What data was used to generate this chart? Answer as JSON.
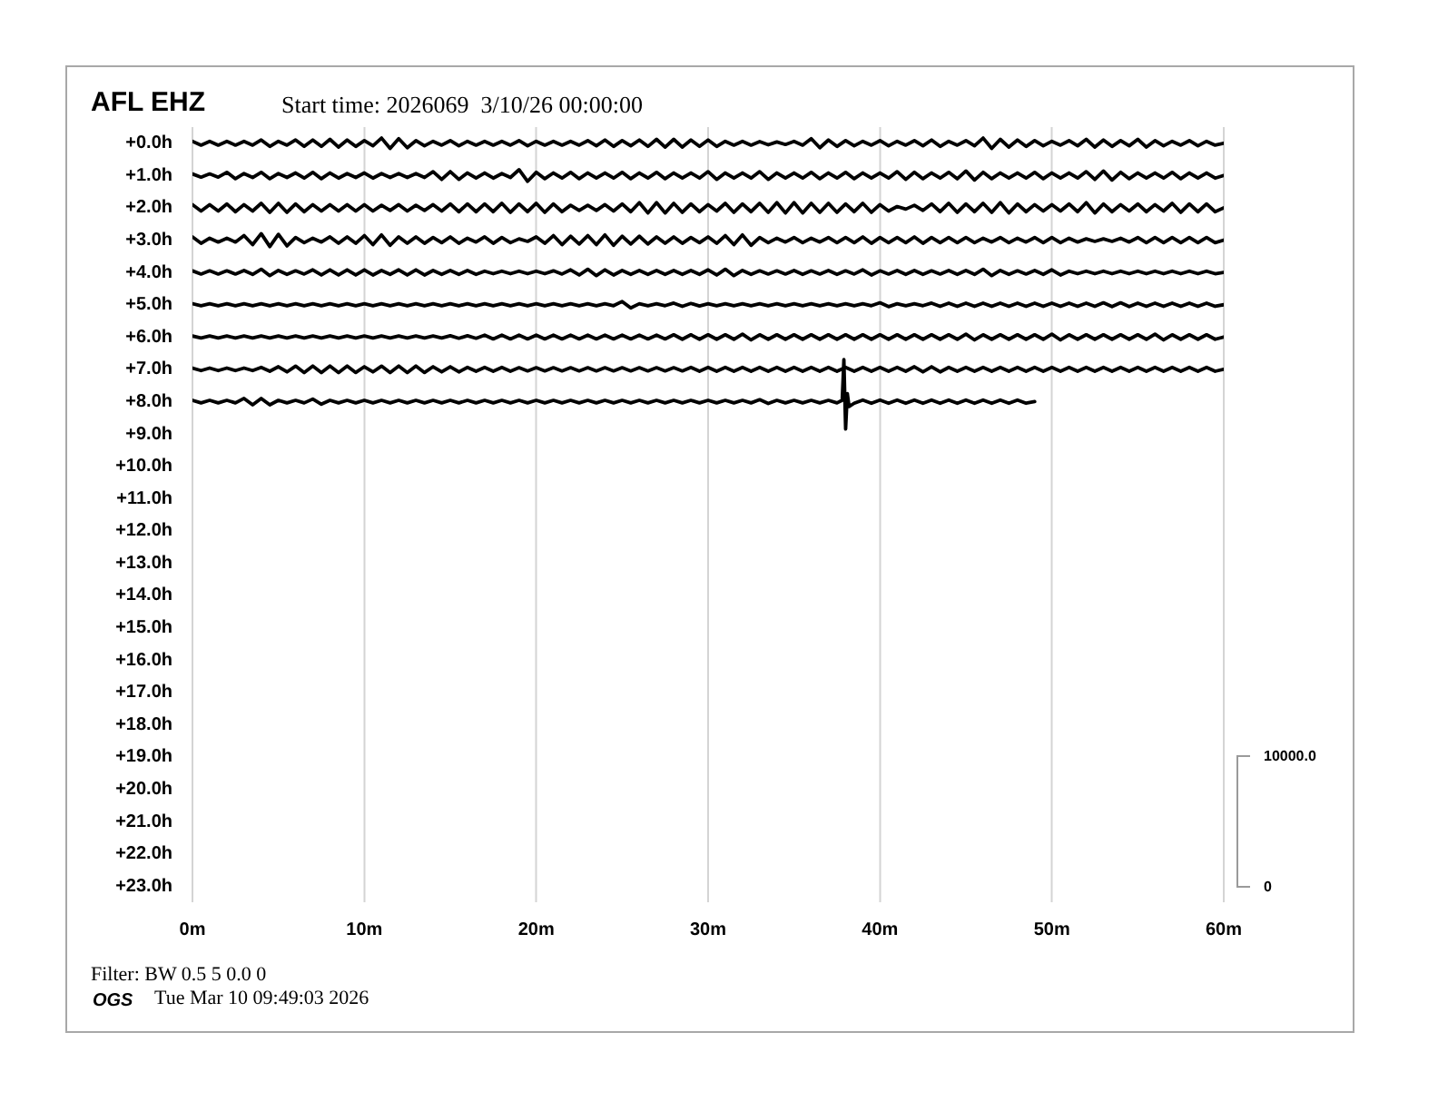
{
  "chart_data": {
    "type": "line",
    "title": "AFL EHZ",
    "subtitle": "Start time: 2026069  3/10/26 00:00:00",
    "annotations": [
      "10000.0",
      "0",
      "Filter: BW 0.5 5 0.0 0",
      "OGS",
      "Tue Mar 10 09:49:03 2026"
    ],
    "grid": "x",
    "xlim": [
      0,
      60
    ],
    "xticks": [
      {
        "value": 0,
        "label": "0m"
      },
      {
        "value": 10,
        "label": "10m"
      },
      {
        "value": 20,
        "label": "20m"
      },
      {
        "value": 30,
        "label": "30m"
      },
      {
        "value": 40,
        "label": "40m"
      },
      {
        "value": 50,
        "label": "50m"
      },
      {
        "value": 60,
        "label": "60m"
      }
    ],
    "ylim": [
      23.5,
      -0.5
    ],
    "yticks": [
      {
        "value": 0,
        "label": "+0.0h"
      },
      {
        "value": 1,
        "label": "+1.0h"
      },
      {
        "value": 2,
        "label": "+2.0h"
      },
      {
        "value": 3,
        "label": "+3.0h"
      },
      {
        "value": 4,
        "label": "+4.0h"
      },
      {
        "value": 5,
        "label": "+5.0h"
      },
      {
        "value": 6,
        "label": "+6.0h"
      },
      {
        "value": 7,
        "label": "+7.0h"
      },
      {
        "value": 8,
        "label": "+8.0h"
      },
      {
        "value": 9,
        "label": "+9.0h"
      },
      {
        "value": 10,
        "label": "+10.0h"
      },
      {
        "value": 11,
        "label": "+11.0h"
      },
      {
        "value": 12,
        "label": "+12.0h"
      },
      {
        "value": 13,
        "label": "+13.0h"
      },
      {
        "value": 14,
        "label": "+14.0h"
      },
      {
        "value": 15,
        "label": "+15.0h"
      },
      {
        "value": 16,
        "label": "+16.0h"
      },
      {
        "value": 17,
        "label": "+17.0h"
      },
      {
        "value": 18,
        "label": "+18.0h"
      },
      {
        "value": 19,
        "label": "+19.0h"
      },
      {
        "value": 20,
        "label": "+20.0h"
      },
      {
        "value": 21,
        "label": "+21.0h"
      },
      {
        "value": 22,
        "label": "+22.0h"
      },
      {
        "value": 23,
        "label": "+23.0h"
      }
    ],
    "x": [
      0,
      0.5,
      1,
      1.5,
      2,
      2.5,
      3,
      3.5,
      4,
      4.5,
      5,
      5.5,
      6,
      6.5,
      7,
      7.5,
      8,
      8.5,
      9,
      9.5,
      10,
      10.5,
      11,
      11.5,
      12,
      12.5,
      13,
      13.5,
      14,
      14.5,
      15,
      15.5,
      16,
      16.5,
      17,
      17.5,
      18,
      18.5,
      19,
      19.5,
      20,
      20.5,
      21,
      21.5,
      22,
      22.5,
      23,
      23.5,
      24,
      24.5,
      25,
      25.5,
      26,
      26.5,
      27,
      27.5,
      28,
      28.5,
      29,
      29.5,
      30,
      30.5,
      31,
      31.5,
      32,
      32.5,
      33,
      33.5,
      34,
      34.5,
      35,
      35.5,
      36,
      36.5,
      37,
      37.5,
      38,
      38.5,
      39,
      39.5,
      40,
      40.5,
      41,
      41.5,
      42,
      42.5,
      43,
      43.5,
      44,
      44.5,
      45,
      45.5,
      46,
      46.5,
      47,
      47.5,
      48,
      48.5,
      49,
      49.5,
      50,
      50.5,
      51,
      51.5,
      52,
      52.5,
      53,
      53.5,
      54,
      54.5,
      55,
      55.5,
      56,
      56.5,
      57,
      57.5,
      58,
      58.5,
      59,
      59.5,
      60
    ],
    "series": [
      {
        "color": "#000000",
        "values": [
          -0.06,
          0.06,
          -0.06,
          0.06,
          -0.06,
          0.06,
          -0.06,
          0.06,
          -0.1,
          0.1,
          -0.06,
          0.06,
          -0.1,
          0.1,
          -0.1,
          0.1,
          -0.12,
          0.12,
          -0.1,
          0.1,
          -0.08,
          0.08,
          -0.16,
          0.16,
          -0.14,
          0.14,
          -0.08,
          0.08,
          -0.06,
          0.06,
          -0.08,
          0.08,
          -0.06,
          0.06,
          -0.06,
          0.06,
          -0.06,
          0.06,
          -0.08,
          0.08,
          -0.06,
          0.06,
          -0.06,
          0.06,
          -0.06,
          0.06,
          -0.08,
          0.08,
          -0.1,
          0.1,
          -0.08,
          0.08,
          -0.1,
          0.1,
          -0.12,
          0.12,
          -0.12,
          0.12,
          -0.1,
          0.1,
          -0.1,
          0.1,
          -0.06,
          0.06,
          -0.06,
          0.06,
          -0.05,
          0.05,
          -0.04,
          0.04,
          -0.06,
          0.06,
          -0.14,
          0.14,
          -0.1,
          0.1,
          -0.08,
          0.08,
          -0.06,
          0.06,
          -0.08,
          0.08,
          -0.06,
          0.06,
          -0.08,
          0.08,
          -0.1,
          0.1,
          -0.06,
          0.06,
          -0.08,
          0.08,
          -0.16,
          0.16,
          -0.12,
          0.12,
          -0.1,
          0.1,
          -0.08,
          0.08,
          -0.06,
          0.06,
          -0.08,
          0.08,
          -0.12,
          0.12,
          -0.1,
          0.1,
          -0.08,
          0.08,
          -0.12,
          0.12,
          -0.08,
          0.08,
          -0.06,
          0.06,
          -0.08,
          0.08,
          -0.06,
          0.06,
          0
        ]
      },
      {
        "color": "#000000",
        "values": [
          0.95,
          1.05,
          0.95,
          1.05,
          0.9,
          1.1,
          0.94,
          1.06,
          0.9,
          1.1,
          0.94,
          1.06,
          0.92,
          1.08,
          0.9,
          1.1,
          0.92,
          1.08,
          0.94,
          1.06,
          0.92,
          1.08,
          0.94,
          1.06,
          0.94,
          1.06,
          0.94,
          1.06,
          0.88,
          1.12,
          0.88,
          1.12,
          0.92,
          1.08,
          0.92,
          1.08,
          0.94,
          1.06,
          0.82,
          1.18,
          0.9,
          1.1,
          0.92,
          1.08,
          0.9,
          1.1,
          0.92,
          1.08,
          0.92,
          1.08,
          0.9,
          1.1,
          0.92,
          1.08,
          0.9,
          1.1,
          0.92,
          1.08,
          0.92,
          1.08,
          0.88,
          1.12,
          0.92,
          1.08,
          0.92,
          1.08,
          0.88,
          1.12,
          0.92,
          1.08,
          0.92,
          1.08,
          0.9,
          1.1,
          0.92,
          1.08,
          0.9,
          1.1,
          0.92,
          1.08,
          0.92,
          1.08,
          0.88,
          1.12,
          0.9,
          1.1,
          0.92,
          1.08,
          0.9,
          1.1,
          0.86,
          1.14,
          0.9,
          1.1,
          0.92,
          1.08,
          0.92,
          1.08,
          0.9,
          1.1,
          0.92,
          1.08,
          0.92,
          1.08,
          0.88,
          1.12,
          0.86,
          1.14,
          0.9,
          1.1,
          0.92,
          1.08,
          0.92,
          1.08,
          0.9,
          1.1,
          0.92,
          1.08,
          0.92,
          1.08,
          1
        ]
      },
      {
        "color": "#000000",
        "values": [
          1.9,
          2.1,
          1.9,
          2.1,
          1.88,
          2.12,
          1.9,
          2.1,
          1.86,
          2.14,
          1.86,
          2.14,
          1.88,
          2.12,
          1.9,
          2.1,
          1.9,
          2.1,
          1.9,
          2.1,
          1.9,
          2.1,
          1.92,
          2.08,
          1.9,
          2.1,
          1.92,
          2.08,
          1.9,
          2.1,
          1.88,
          2.12,
          1.88,
          2.12,
          1.88,
          2.12,
          1.86,
          2.14,
          1.88,
          2.12,
          1.86,
          2.14,
          1.88,
          2.12,
          1.92,
          2.08,
          1.92,
          2.08,
          1.9,
          2.1,
          1.88,
          2.12,
          1.84,
          2.16,
          1.84,
          2.16,
          1.86,
          2.14,
          1.88,
          2.12,
          1.9,
          2.1,
          1.86,
          2.14,
          1.88,
          2.12,
          1.86,
          2.14,
          1.84,
          2.16,
          1.84,
          2.16,
          1.86,
          2.14,
          1.86,
          2.14,
          1.88,
          2.12,
          1.86,
          2.14,
          1.9,
          2.1,
          1.96,
          2.04,
          1.92,
          2.08,
          1.88,
          2.12,
          1.86,
          2.14,
          1.88,
          2.12,
          1.86,
          2.14,
          1.84,
          2.16,
          1.88,
          2.12,
          1.9,
          2.1,
          1.9,
          2.1,
          1.88,
          2.12,
          1.84,
          2.16,
          1.88,
          2.12,
          1.9,
          2.1,
          1.88,
          2.12,
          1.9,
          2.1,
          1.86,
          2.14,
          1.88,
          2.12,
          1.88,
          2.12,
          2
        ]
      },
      {
        "color": "#000000",
        "values": [
          2.9,
          3.1,
          2.94,
          3.06,
          2.94,
          3.06,
          2.86,
          3.14,
          2.8,
          3.2,
          2.82,
          3.18,
          2.92,
          3.08,
          2.94,
          3.06,
          2.9,
          3.1,
          2.9,
          3.1,
          2.86,
          3.14,
          2.84,
          3.16,
          2.9,
          3.1,
          2.9,
          3.1,
          2.92,
          3.08,
          2.9,
          3.1,
          2.94,
          3.06,
          2.9,
          3.1,
          2.92,
          3.08,
          2.96,
          3.04,
          2.9,
          3.1,
          2.86,
          3.14,
          2.88,
          3.12,
          2.86,
          3.14,
          2.84,
          3.16,
          2.88,
          3.12,
          2.88,
          3.12,
          2.9,
          3.1,
          2.9,
          3.1,
          2.92,
          3.08,
          2.9,
          3.1,
          2.86,
          3.14,
          2.84,
          3.16,
          2.92,
          3.08,
          2.94,
          3.06,
          2.92,
          3.08,
          2.94,
          3.06,
          2.92,
          3.08,
          2.92,
          3.08,
          2.9,
          3.1,
          2.92,
          3.08,
          2.92,
          3.08,
          2.9,
          3.1,
          2.92,
          3.08,
          2.92,
          3.08,
          2.92,
          3.08,
          2.94,
          3.06,
          2.92,
          3.08,
          2.94,
          3.06,
          2.92,
          3.08,
          2.92,
          3.08,
          2.94,
          3.06,
          2.96,
          3.04,
          2.96,
          3.04,
          2.94,
          3.06,
          2.92,
          3.08,
          2.92,
          3.08,
          2.92,
          3.08,
          2.92,
          3.08,
          2.92,
          3.08,
          3
        ]
      },
      {
        "color": "#000000",
        "values": [
          3.95,
          4.05,
          3.95,
          4.05,
          3.95,
          4.05,
          3.94,
          4.06,
          3.9,
          4.1,
          3.94,
          4.06,
          3.95,
          4.05,
          3.92,
          4.08,
          3.92,
          4.08,
          3.92,
          4.08,
          3.92,
          4.08,
          3.94,
          4.06,
          3.92,
          4.08,
          3.92,
          4.08,
          3.94,
          4.06,
          3.94,
          4.06,
          3.94,
          4.06,
          3.96,
          4.04,
          3.96,
          4.04,
          3.96,
          4.04,
          3.96,
          4.04,
          3.95,
          4.05,
          3.92,
          4.08,
          3.9,
          4.1,
          3.92,
          4.08,
          3.94,
          4.06,
          3.94,
          4.06,
          3.94,
          4.06,
          3.94,
          4.06,
          3.94,
          4.06,
          3.92,
          4.08,
          3.9,
          4.1,
          3.94,
          4.06,
          3.95,
          4.05,
          3.95,
          4.05,
          3.94,
          4.06,
          3.95,
          4.05,
          3.94,
          4.06,
          3.95,
          4.05,
          3.92,
          4.08,
          3.95,
          4.05,
          3.94,
          4.06,
          3.94,
          4.06,
          3.95,
          4.05,
          3.94,
          4.06,
          3.94,
          4.06,
          3.9,
          4.1,
          3.94,
          4.06,
          3.95,
          4.05,
          3.94,
          4.06,
          3.92,
          4.08,
          3.96,
          4.04,
          3.96,
          4.04,
          3.96,
          4.04,
          3.96,
          4.04,
          3.96,
          4.04,
          3.96,
          4.04,
          3.96,
          4.04,
          3.96,
          4.04,
          3.96,
          4.04,
          4
        ]
      },
      {
        "color": "#000000",
        "values": [
          4.97,
          5.03,
          4.97,
          5.03,
          4.97,
          5.03,
          4.97,
          5.03,
          4.97,
          5.03,
          4.97,
          5.03,
          4.97,
          5.03,
          4.97,
          5.03,
          4.97,
          5.03,
          4.97,
          5.03,
          4.97,
          5.03,
          4.97,
          5.03,
          4.97,
          5.03,
          4.97,
          5.03,
          4.97,
          5.03,
          4.97,
          5.03,
          4.97,
          5.03,
          4.97,
          5.03,
          4.97,
          5.03,
          4.97,
          5.03,
          4.97,
          5.03,
          4.97,
          5.03,
          4.97,
          5.03,
          4.97,
          5.03,
          4.97,
          5.03,
          4.9,
          5.1,
          4.97,
          5.03,
          4.97,
          5.03,
          4.95,
          5.05,
          4.96,
          5.04,
          4.97,
          5.03,
          4.97,
          5.03,
          4.97,
          5.03,
          4.97,
          5.03,
          4.97,
          5.03,
          4.97,
          5.03,
          4.97,
          5.03,
          4.97,
          5.03,
          4.97,
          5.03,
          4.97,
          5.03,
          4.94,
          5.06,
          4.97,
          5.03,
          4.97,
          5.03,
          4.95,
          5.05,
          4.95,
          5.05,
          4.95,
          5.05,
          4.95,
          5.05,
          4.95,
          5.05,
          4.95,
          5.05,
          4.95,
          5.05,
          4.95,
          5.05,
          4.95,
          5.05,
          4.95,
          5.05,
          4.94,
          5.06,
          4.94,
          5.06,
          4.95,
          5.05,
          4.95,
          5.05,
          4.95,
          5.05,
          4.95,
          5.05,
          4.95,
          5.05,
          5
        ]
      },
      {
        "color": "#000000",
        "values": [
          5.97,
          6.03,
          5.97,
          6.03,
          5.97,
          6.03,
          5.97,
          6.03,
          5.97,
          6.03,
          5.97,
          6.03,
          5.97,
          6.03,
          5.97,
          6.03,
          5.97,
          6.03,
          5.97,
          6.03,
          5.97,
          6.03,
          5.97,
          6.03,
          5.97,
          6.03,
          5.97,
          6.03,
          5.97,
          6.03,
          5.96,
          6.04,
          5.96,
          6.04,
          5.94,
          6.06,
          5.94,
          6.06,
          5.94,
          6.06,
          5.94,
          6.06,
          5.94,
          6.06,
          5.94,
          6.06,
          5.94,
          6.06,
          5.94,
          6.06,
          5.94,
          6.06,
          5.94,
          6.06,
          5.94,
          6.06,
          5.93,
          6.07,
          5.93,
          6.07,
          5.93,
          6.07,
          5.93,
          6.07,
          5.91,
          6.09,
          5.93,
          6.07,
          5.93,
          6.07,
          5.93,
          6.07,
          5.93,
          6.07,
          5.93,
          6.07,
          5.93,
          6.07,
          5.93,
          6.07,
          5.93,
          6.07,
          5.93,
          6.07,
          5.93,
          6.07,
          5.93,
          6.07,
          5.93,
          6.07,
          5.91,
          6.09,
          5.93,
          6.07,
          5.93,
          6.07,
          5.93,
          6.07,
          5.93,
          6.07,
          5.91,
          6.09,
          5.93,
          6.07,
          5.93,
          6.07,
          5.93,
          6.07,
          5.93,
          6.07,
          5.93,
          6.07,
          5.91,
          6.09,
          5.93,
          6.07,
          5.93,
          6.07,
          5.93,
          6.07,
          6
        ]
      },
      {
        "color": "#000000",
        "values": [
          6.96,
          7.04,
          6.96,
          7.04,
          6.96,
          7.04,
          6.96,
          7.04,
          6.94,
          7.06,
          6.92,
          7.08,
          6.9,
          7.1,
          6.9,
          7.1,
          6.9,
          7.1,
          6.9,
          7.1,
          6.92,
          7.08,
          6.9,
          7.1,
          6.9,
          7.1,
          6.9,
          7.1,
          6.92,
          7.08,
          6.92,
          7.08,
          6.94,
          7.06,
          6.94,
          7.06,
          6.94,
          7.06,
          6.95,
          7.05,
          6.95,
          7.05,
          6.95,
          7.05,
          6.95,
          7.05,
          6.95,
          7.05,
          6.95,
          7.05,
          6.95,
          7.05,
          6.95,
          7.05,
          6.95,
          7.05,
          6.95,
          7.05,
          6.94,
          7.06,
          6.94,
          7.06,
          6.94,
          7.06,
          6.94,
          7.06,
          6.94,
          7.06,
          6.94,
          7.06,
          6.94,
          7.06,
          6.94,
          7.06,
          6.94,
          7.06,
          6.94,
          7.06,
          6.94,
          7.06,
          6.94,
          7.06,
          6.94,
          7.06,
          6.92,
          7.08,
          6.92,
          7.08,
          6.94,
          7.06,
          6.94,
          7.06,
          6.94,
          7.06,
          6.94,
          7.06,
          6.94,
          7.06,
          6.94,
          7.06,
          6.94,
          7.06,
          6.94,
          7.06,
          6.94,
          7.06,
          6.94,
          7.06,
          6.94,
          7.06,
          6.94,
          7.06,
          6.94,
          7.06,
          6.94,
          7.06,
          6.94,
          7.06,
          6.94,
          7.06,
          7
        ]
      },
      {
        "color": "#000000",
        "x": [
          0,
          0.5,
          1,
          1.5,
          2,
          2.5,
          3,
          3.5,
          4,
          4.5,
          5,
          5.5,
          6,
          6.5,
          7,
          7.5,
          8,
          8.5,
          9,
          9.5,
          10,
          10.5,
          11,
          11.5,
          12,
          12.5,
          13,
          13.5,
          14,
          14.5,
          15,
          15.5,
          16,
          16.5,
          17,
          17.5,
          18,
          18.5,
          19,
          19.5,
          20,
          20.5,
          21,
          21.5,
          22,
          22.5,
          23,
          23.5,
          24,
          24.5,
          25,
          25.5,
          26,
          26.5,
          27,
          27.5,
          28,
          28.5,
          29,
          29.5,
          30,
          30.5,
          31,
          31.5,
          32,
          32.5,
          33,
          33.5,
          34,
          34.5,
          35,
          35.5,
          36,
          36.5,
          37,
          37.5,
          37.8,
          37.9,
          38,
          38.1,
          38.2,
          38.5,
          39,
          39.5,
          40,
          40.5,
          41,
          41.5,
          42,
          42.5,
          43,
          43.5,
          44,
          44.5,
          45,
          45.5,
          46,
          46.5,
          47,
          47.5,
          48,
          48.5,
          49
        ],
        "values": [
          7.96,
          8.04,
          7.96,
          8.04,
          7.96,
          8.04,
          7.9,
          8.1,
          7.9,
          8.1,
          7.96,
          8.04,
          7.96,
          8.04,
          7.92,
          8.08,
          7.96,
          8.04,
          7.96,
          8.04,
          7.96,
          8.04,
          7.96,
          8.04,
          7.96,
          8.04,
          7.96,
          8.04,
          7.96,
          8.04,
          7.96,
          8.04,
          7.96,
          8.04,
          7.96,
          8.04,
          7.96,
          8.04,
          7.96,
          8.04,
          7.96,
          8.04,
          7.96,
          8.04,
          7.96,
          8.04,
          7.96,
          8.04,
          7.96,
          8.04,
          7.96,
          8.04,
          7.96,
          8.04,
          7.96,
          8.04,
          7.96,
          8.04,
          7.96,
          8.04,
          7.96,
          8.04,
          7.96,
          8.04,
          7.96,
          8.04,
          7.94,
          8.06,
          7.96,
          8.04,
          7.96,
          8.04,
          7.96,
          8.04,
          7.96,
          8.04,
          7.96,
          6.7,
          8.85,
          7.75,
          8.15,
          8.05,
          7.95,
          8.05,
          7.95,
          8.05,
          7.95,
          8.05,
          7.95,
          8.05,
          7.95,
          8.05,
          7.95,
          8.05,
          7.95,
          8.05,
          7.95,
          8.05,
          7.95,
          8.05,
          7.95,
          8.05,
          8
        ]
      }
    ]
  }
}
